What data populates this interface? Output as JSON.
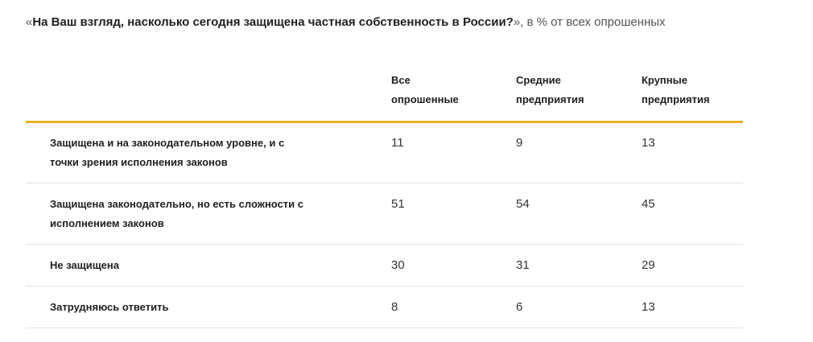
{
  "chart_data": {
    "type": "table",
    "title_open_quote": "«",
    "title_question": "На Ваш взгляд, насколько сегодня защищена частная собственность в России?",
    "title_suffix": "», в % от всех опрошенных",
    "columns": [
      {
        "line1": "Все",
        "line2": "опрошенные"
      },
      {
        "line1": "Средние",
        "line2": "предприятия"
      },
      {
        "line1": "Крупные",
        "line2": "предприятия"
      }
    ],
    "rows": [
      {
        "label_line1": "Защищена и на законодательном уровне, и с",
        "label_line2": "точки зрения исполнения законов",
        "values": [
          11,
          9,
          13
        ]
      },
      {
        "label_line1": "Защищена законодательно, но есть сложности с",
        "label_line2": "исполнением законов",
        "values": [
          51,
          54,
          45
        ]
      },
      {
        "label_line1": "Не защищена",
        "label_line2": "",
        "values": [
          30,
          31,
          29
        ]
      },
      {
        "label_line1": "Затрудняюсь ответить",
        "label_line2": "",
        "values": [
          8,
          6,
          13
        ]
      }
    ],
    "accent_color": "#e5b224",
    "divider_color": "#e3e3e3"
  }
}
